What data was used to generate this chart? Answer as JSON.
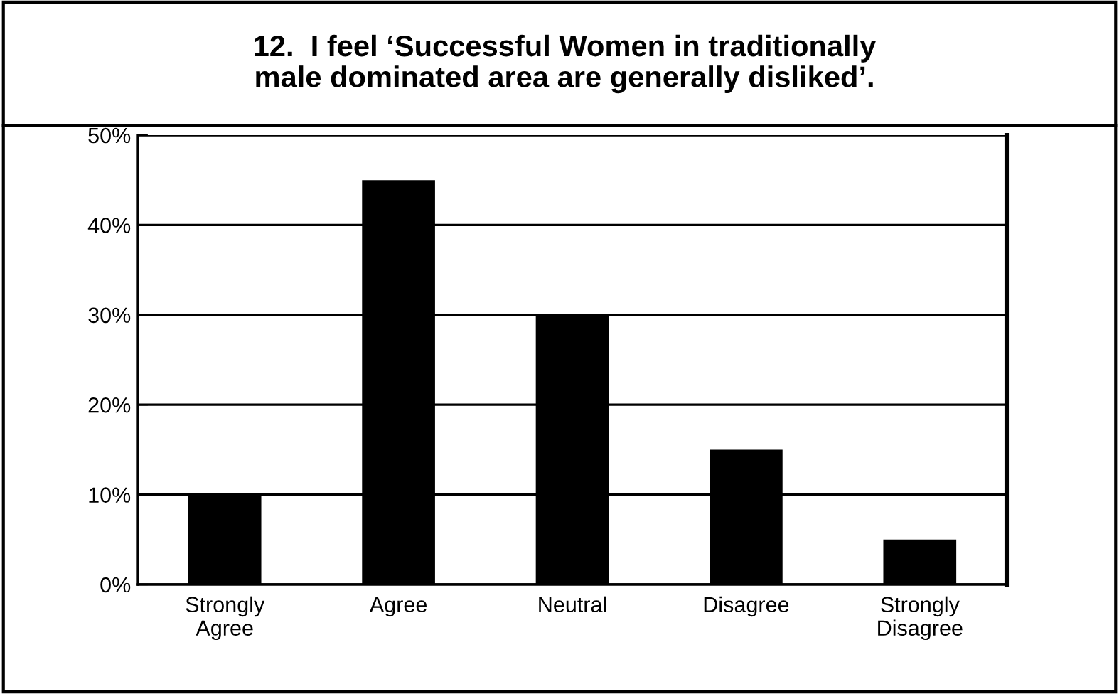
{
  "chart_data": {
    "type": "bar",
    "title": "12.  I feel ‘Successful Women in traditionally\nmale dominated area are generally disliked’.",
    "categories": [
      "Strongly\nAgree",
      "Agree",
      "Neutral",
      "Disagree",
      "Strongly\nDisagree"
    ],
    "values": [
      10,
      45,
      30,
      15,
      5
    ],
    "color": "#000000",
    "ylim": [
      0,
      50
    ],
    "yticks": [
      {
        "value": 0,
        "label": "0%"
      },
      {
        "value": 10,
        "label": "10%"
      },
      {
        "value": 20,
        "label": "20%"
      },
      {
        "value": 30,
        "label": "30%"
      },
      {
        "value": 40,
        "label": "40%"
      },
      {
        "value": 50,
        "label": "50%"
      }
    ],
    "grid": "y",
    "legend": false
  }
}
